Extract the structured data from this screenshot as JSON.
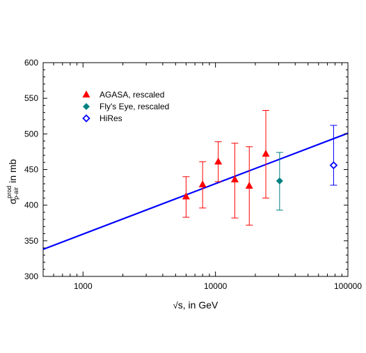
{
  "chart_data": {
    "type": "scatter",
    "x_scale": "log",
    "xlim": [
      500,
      100000
    ],
    "ylim": [
      300,
      600
    ],
    "x_ticks": [
      1000,
      10000,
      100000
    ],
    "x_tick_labels": [
      "1000",
      "10000",
      "100000"
    ],
    "y_ticks": [
      300,
      350,
      400,
      450,
      500,
      550,
      600
    ],
    "y_tick_labels": [
      "300",
      "350",
      "400",
      "450",
      "500",
      "550",
      "600"
    ],
    "xlabel": {
      "prefix": "√",
      "text": "s, in GeV"
    },
    "ylabel": {
      "symbol": "σ",
      "sup": "prod",
      "sub": "p-air",
      "suffix": "in mb"
    },
    "grid": false,
    "legend_position": "top-left",
    "series": [
      {
        "name": "AGASA,   rescaled",
        "marker": "triangle",
        "color": "#ff0000",
        "points": [
          {
            "x": 6000,
            "y": 412,
            "y_low": 383,
            "y_high": 440
          },
          {
            "x": 8000,
            "y": 429,
            "y_low": 396,
            "y_high": 461
          },
          {
            "x": 10500,
            "y": 461,
            "y_low": 433,
            "y_high": 489
          },
          {
            "x": 14000,
            "y": 436,
            "y_low": 382,
            "y_high": 487
          },
          {
            "x": 18000,
            "y": 427,
            "y_low": 372,
            "y_high": 482
          },
          {
            "x": 24000,
            "y": 472,
            "y_low": 410,
            "y_high": 533
          }
        ]
      },
      {
        "name": "Fly's Eye, rescaled",
        "marker": "diamond-filled",
        "color": "#008080",
        "points": [
          {
            "x": 30500,
            "y": 434,
            "y_low": 393,
            "y_high": 474
          }
        ]
      },
      {
        "name": "HiRes",
        "marker": "diamond-open",
        "color": "#0000ff",
        "points": [
          {
            "x": 78000,
            "y": 456,
            "y_low": 428,
            "y_high": 512
          }
        ]
      }
    ],
    "fit_line": {
      "color": "#0000ff",
      "points": [
        {
          "x": 500,
          "y": 338
        },
        {
          "x": 100000,
          "y": 501
        }
      ]
    }
  }
}
